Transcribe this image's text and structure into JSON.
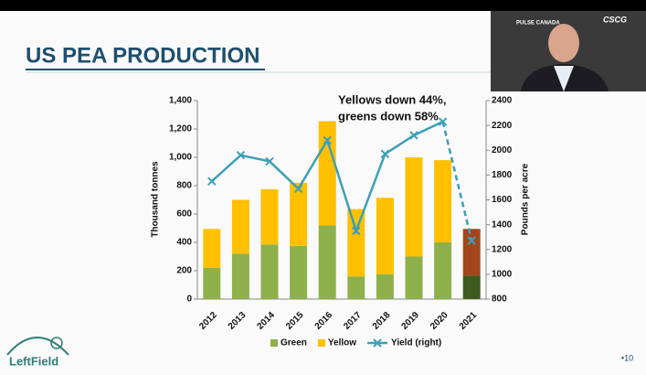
{
  "slide": {
    "title": "US PEA PRODUCTION",
    "page": "•10",
    "logo": "LeftField",
    "video_logos": [
      "PULSE CANADA",
      "CSCG"
    ]
  },
  "chart_data": {
    "type": "bar",
    "stacked": true,
    "categories": [
      "2012",
      "2013",
      "2014",
      "2015",
      "2016",
      "2017",
      "2018",
      "2019",
      "2020",
      "2021"
    ],
    "series": [
      {
        "name": "Green",
        "color": "#8db04b",
        "colors": [
          "#8db04b",
          "#8db04b",
          "#8db04b",
          "#8db04b",
          "#8db04b",
          "#8db04b",
          "#8db04b",
          "#8db04b",
          "#8db04b",
          "#3e5b1f"
        ],
        "values": [
          220,
          320,
          385,
          375,
          520,
          160,
          175,
          300,
          400,
          165
        ]
      },
      {
        "name": "Yellow",
        "color": "#ffc000",
        "colors": [
          "#ffc000",
          "#ffc000",
          "#ffc000",
          "#ffc000",
          "#ffc000",
          "#ffc000",
          "#ffc000",
          "#ffc000",
          "#ffc000",
          "#a3461b"
        ],
        "values": [
          275,
          380,
          390,
          445,
          735,
          475,
          540,
          700,
          580,
          330
        ]
      },
      {
        "name": "Yield (right)",
        "type": "line",
        "axis": "y2",
        "color": "#3aa0b8",
        "dashed_last": true,
        "values": [
          1750,
          1960,
          1910,
          1690,
          2080,
          1350,
          1970,
          2120,
          2230,
          1270
        ]
      }
    ],
    "ylabel": "Thousand tonnes",
    "y2label": "Pounds per acre",
    "ylim": [
      0,
      1400
    ],
    "yticks": [
      0,
      200,
      400,
      600,
      800,
      {
        "value": 1000,
        "label": "1,000"
      },
      {
        "value": 1200,
        "label": "1,200"
      },
      {
        "value": 1400,
        "label": "1,400"
      }
    ],
    "y2lim": [
      800,
      2400
    ],
    "y2ticks": [
      800,
      1000,
      1200,
      1400,
      1600,
      1800,
      2000,
      2200,
      2400
    ],
    "annotation": [
      "Yellows down 44%,",
      "greens down 58%"
    ],
    "legend": "bottom",
    "grid": false
  }
}
